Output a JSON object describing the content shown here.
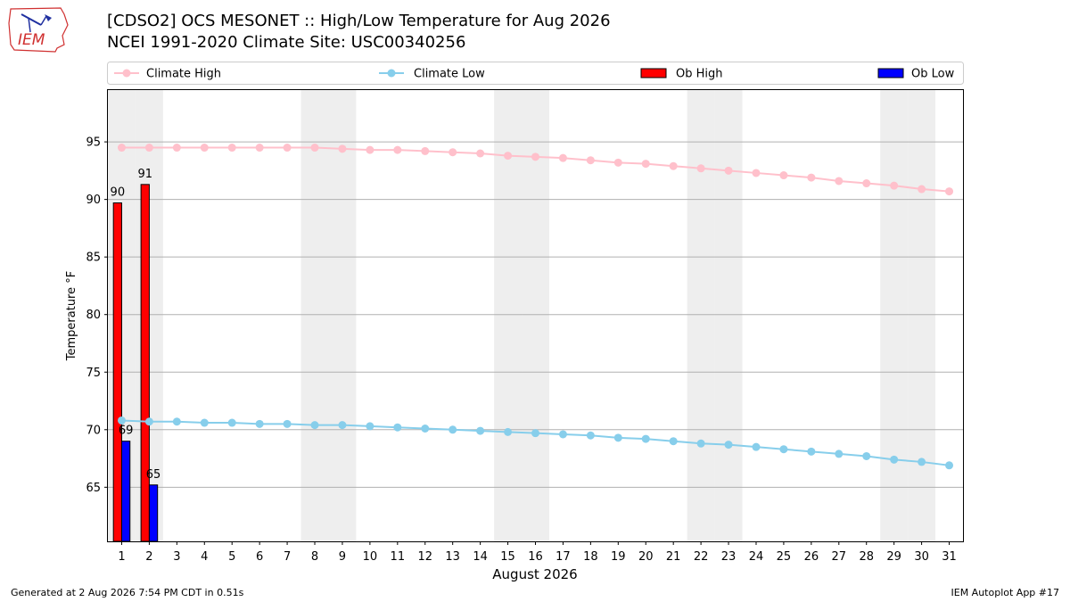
{
  "logo_text": "IEM",
  "header": {
    "title_line1": "[CDSO2] OCS MESONET :: High/Low Temperature for Aug 2026",
    "title_line2": "NCEI 1991-2020 Climate Site: USC00340256"
  },
  "footer": {
    "generated": "Generated at 2 Aug 2026 7:54 PM CDT in 0.51s",
    "app": "IEM Autoplot App #17"
  },
  "colors": {
    "climate_high": "#ffc0cb",
    "climate_low": "#87ceeb",
    "ob_high": "#ff0000",
    "ob_low": "#0000ff",
    "weekend_shade": "#eeeeee",
    "grid": "#b0b0b0"
  },
  "chart_data": {
    "type": "bar",
    "title": "[CDSO2] OCS MESONET :: High/Low Temperature for Aug 2026",
    "subtitle": "NCEI 1991-2020 Climate Site: USC00340256",
    "xlabel": "August 2026",
    "ylabel": "Temperature °F",
    "x": [
      1,
      2,
      3,
      4,
      5,
      6,
      7,
      8,
      9,
      10,
      11,
      12,
      13,
      14,
      15,
      16,
      17,
      18,
      19,
      20,
      21,
      22,
      23,
      24,
      25,
      26,
      27,
      28,
      29,
      30,
      31
    ],
    "xlim": [
      0.5,
      31.5
    ],
    "ylim": [
      60.3,
      99.5
    ],
    "yticks": [
      65,
      70,
      75,
      80,
      85,
      90,
      95
    ],
    "grid": true,
    "legend_position": "top",
    "shaded_days": [
      1,
      2,
      8,
      9,
      15,
      16,
      22,
      23,
      29,
      30
    ],
    "series": [
      {
        "name": "Climate High",
        "kind": "line",
        "values": [
          94.5,
          94.5,
          94.5,
          94.5,
          94.5,
          94.5,
          94.5,
          94.5,
          94.4,
          94.3,
          94.3,
          94.2,
          94.1,
          94.0,
          93.8,
          93.7,
          93.6,
          93.4,
          93.2,
          93.1,
          92.9,
          92.7,
          92.5,
          92.3,
          92.1,
          91.9,
          91.6,
          91.4,
          91.2,
          90.9,
          90.7
        ]
      },
      {
        "name": "Climate Low",
        "kind": "line",
        "values": [
          70.8,
          70.7,
          70.7,
          70.6,
          70.6,
          70.5,
          70.5,
          70.4,
          70.4,
          70.3,
          70.2,
          70.1,
          70.0,
          69.9,
          69.8,
          69.7,
          69.6,
          69.5,
          69.3,
          69.2,
          69.0,
          68.8,
          68.7,
          68.5,
          68.3,
          68.1,
          67.9,
          67.7,
          67.4,
          67.2,
          66.9
        ]
      },
      {
        "name": "Ob High",
        "kind": "bar",
        "x": [
          1,
          2
        ],
        "values": [
          89.7,
          91.3
        ],
        "labels": [
          "90",
          "91"
        ]
      },
      {
        "name": "Ob Low",
        "kind": "bar",
        "x": [
          1,
          2
        ],
        "values": [
          69.0,
          65.2
        ],
        "labels": [
          "69",
          "65"
        ]
      }
    ]
  }
}
